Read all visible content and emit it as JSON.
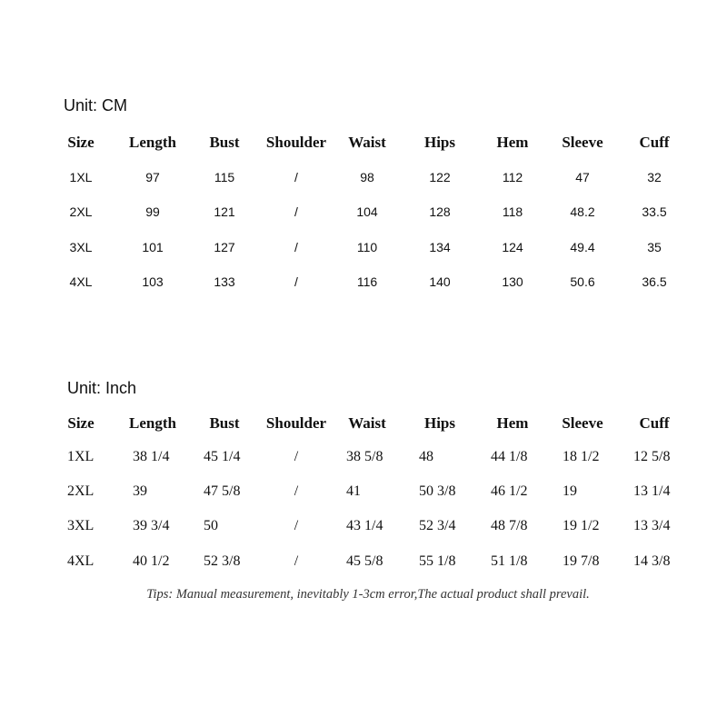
{
  "cm_table": {
    "unit_label": "Unit: CM",
    "headers": [
      "Size",
      "Length",
      "Bust",
      "Shoulder",
      "Waist",
      "Hips",
      "Hem",
      "Sleeve",
      "Cuff"
    ],
    "rows": [
      [
        "1XL",
        "97",
        "115",
        "/",
        "98",
        "122",
        "112",
        "47",
        "32"
      ],
      [
        "2XL",
        "99",
        "121",
        "/",
        "104",
        "128",
        "118",
        "48.2",
        "33.5"
      ],
      [
        "3XL",
        "101",
        "127",
        "/",
        "110",
        "134",
        "124",
        "49.4",
        "35"
      ],
      [
        "4XL",
        "103",
        "133",
        "/",
        "116",
        "140",
        "130",
        "50.6",
        "36.5"
      ]
    ]
  },
  "inch_table": {
    "unit_label": "Unit: Inch",
    "headers": [
      "Size",
      "Length",
      "Bust",
      "Shoulder",
      "Waist",
      "Hips",
      "Hem",
      "Sleeve",
      "Cuff"
    ],
    "rows": [
      [
        "1XL",
        "38 1/4",
        "45 1/4",
        "/",
        "38 5/8",
        "48",
        "44 1/8",
        "18 1/2",
        "12 5/8"
      ],
      [
        "2XL",
        "39",
        "47 5/8",
        "/",
        "41",
        "50 3/8",
        "46 1/2",
        "19",
        "13 1/4"
      ],
      [
        "3XL",
        "39 3/4",
        "50",
        "/",
        "43 1/4",
        "52 3/4",
        "48 7/8",
        "19 1/2",
        "13 3/4"
      ],
      [
        "4XL",
        "40 1/2",
        "52 3/8",
        "/",
        "45 5/8",
        "55 1/8",
        "51 1/8",
        "19 7/8",
        "14 3/8"
      ]
    ]
  },
  "tips": "Tips: Manual measurement, inevitably 1-3cm error,The actual product shall prevail."
}
